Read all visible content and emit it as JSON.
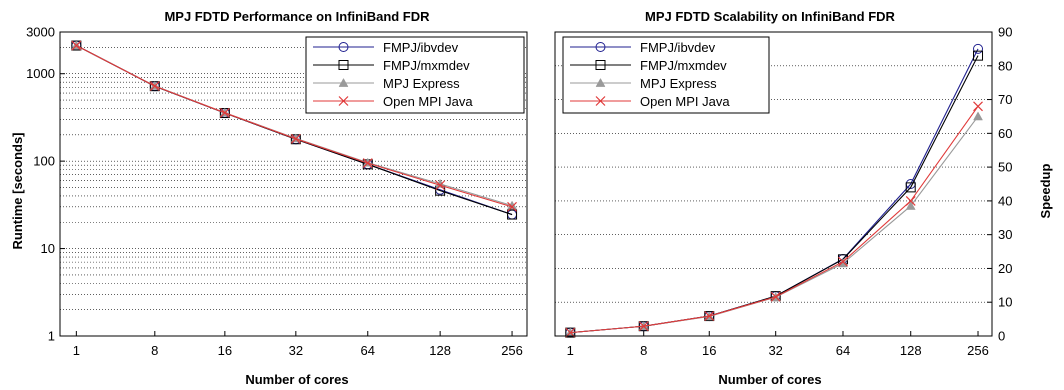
{
  "chart_data": [
    {
      "type": "line",
      "title": "MPJ FDTD Performance on InfiniBand FDR",
      "xlabel": "Number of cores",
      "ylabel": "Runtime [seconds]",
      "x_scale": "log2",
      "y_scale": "log10",
      "categories": [
        "1",
        "8",
        "16",
        "32",
        "64",
        "128",
        "256"
      ],
      "x": [
        1,
        8,
        16,
        32,
        64,
        128,
        256
      ],
      "xlim": [
        1,
        256
      ],
      "ylim": [
        1,
        3000
      ],
      "yticks": [
        1,
        10,
        100,
        1000,
        3000
      ],
      "ytick_labels": [
        "1",
        "10",
        "100",
        "1000",
        "3000"
      ],
      "grid": "horizontal",
      "legend_position": "top-right",
      "series": [
        {
          "name": "FMPJ/ibvdev",
          "color": "#1f1f8f",
          "marker": "circle",
          "values": [
            2100,
            720,
            355,
            178,
            92,
            47,
            24.5
          ]
        },
        {
          "name": "FMPJ/mxmdev",
          "color": "#000000",
          "marker": "square",
          "values": [
            2100,
            720,
            355,
            178,
            92,
            46,
            24.5
          ]
        },
        {
          "name": "MPJ Express",
          "color": "#9a9a9a",
          "marker": "triangle",
          "values": [
            2100,
            725,
            358,
            182,
            96,
            55,
            31
          ]
        },
        {
          "name": "Open MPI Java",
          "color": "#e03a3a",
          "marker": "x",
          "values": [
            2100,
            722,
            357,
            180,
            95,
            53,
            30
          ]
        }
      ]
    },
    {
      "type": "line",
      "title": "MPJ FDTD Scalability on InfiniBand FDR",
      "xlabel": "Number of cores",
      "ylabel": "Speedup",
      "x_scale": "log2",
      "categories": [
        "1",
        "8",
        "16",
        "32",
        "64",
        "128",
        "256"
      ],
      "x": [
        1,
        8,
        16,
        32,
        64,
        128,
        256
      ],
      "xlim": [
        1,
        256
      ],
      "ylim": [
        0,
        90
      ],
      "yticks": [
        0,
        10,
        20,
        30,
        40,
        50,
        60,
        70,
        80,
        90
      ],
      "y_axis_side": "right",
      "grid": "horizontal",
      "legend_position": "top-left",
      "series": [
        {
          "name": "FMPJ/ibvdev",
          "color": "#1f1f8f",
          "marker": "circle",
          "values": [
            1,
            2.9,
            5.9,
            11.8,
            22.8,
            45,
            85
          ]
        },
        {
          "name": "FMPJ/mxmdev",
          "color": "#000000",
          "marker": "square",
          "values": [
            1,
            2.9,
            5.9,
            11.8,
            22.7,
            44,
            83
          ]
        },
        {
          "name": "MPJ Express",
          "color": "#9a9a9a",
          "marker": "triangle",
          "values": [
            1,
            2.9,
            5.8,
            11.5,
            21.5,
            38.5,
            65
          ]
        },
        {
          "name": "Open MPI Java",
          "color": "#e03a3a",
          "marker": "x",
          "values": [
            1,
            2.9,
            5.9,
            11.6,
            22.0,
            40,
            68
          ]
        }
      ]
    }
  ]
}
